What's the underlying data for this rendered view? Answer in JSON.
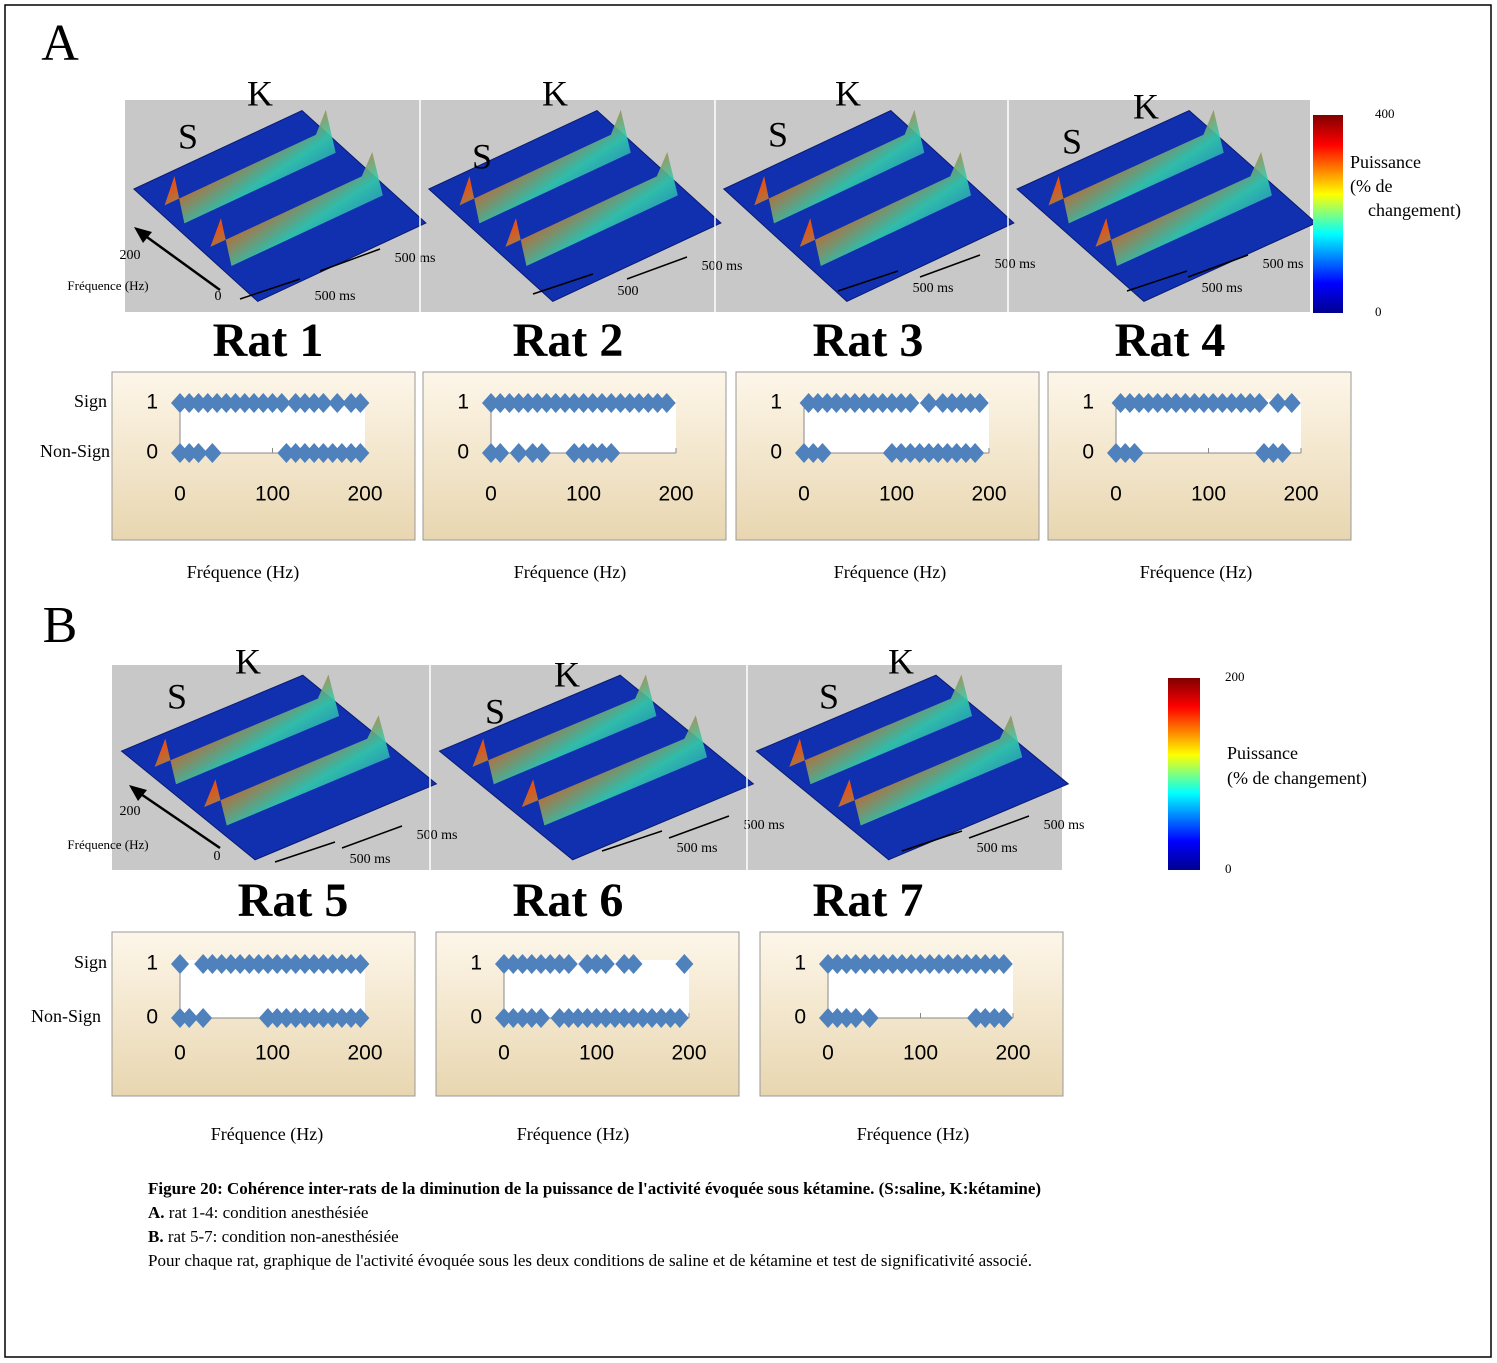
{
  "marker_color": "#4f81bd",
  "panels": [
    {
      "letter": "A",
      "row_labels": [
        "Sign",
        "Non-Sign"
      ],
      "surfaces": [
        {
          "saline": "S",
          "ketamine": "K",
          "time_labels": [
            "500 ms",
            "500 ms"
          ],
          "freq_ticks": [
            "200",
            "0"
          ],
          "freq_label": "Fréquence (Hz)"
        },
        {
          "saline": "S",
          "ketamine": "K",
          "time_labels": [
            "500 ms",
            "500"
          ]
        },
        {
          "saline": "S",
          "ketamine": "K",
          "time_labels": [
            "500 ms",
            "500 ms"
          ]
        },
        {
          "saline": "S",
          "ketamine": "K",
          "time_labels": [
            "500 ms",
            "500 ms"
          ]
        }
      ],
      "colorbar": {
        "ticks": [
          0,
          400
        ],
        "title": [
          "Puissance",
          "(% de",
          "changement)"
        ]
      },
      "charts": [
        {
          "title": "Rat 1",
          "xlabel": "Fréquence (Hz)",
          "xlim": [
            0,
            200
          ],
          "xticks": [
            0,
            100,
            200
          ],
          "ylim": [
            0,
            1
          ],
          "yticks": [
            0,
            1
          ],
          "sign": [
            0,
            10,
            20,
            30,
            40,
            50,
            60,
            70,
            80,
            90,
            100,
            110,
            125,
            135,
            145,
            155,
            170,
            185,
            195
          ],
          "nonsign": [
            0,
            10,
            20,
            35,
            115,
            125,
            135,
            145,
            155,
            165,
            175,
            185,
            195
          ]
        },
        {
          "title": "Rat 2",
          "xlabel": "Fréquence (Hz)",
          "xlim": [
            0,
            200
          ],
          "xticks": [
            0,
            100,
            200
          ],
          "ylim": [
            0,
            1
          ],
          "yticks": [
            0,
            1
          ],
          "sign": [
            0,
            10,
            20,
            30,
            40,
            50,
            60,
            70,
            80,
            90,
            100,
            110,
            120,
            130,
            140,
            150,
            160,
            170,
            180,
            190
          ],
          "nonsign": [
            0,
            10,
            30,
            45,
            55,
            90,
            100,
            110,
            120,
            130
          ]
        },
        {
          "title": "Rat 3",
          "xlabel": "Fréquence (Hz)",
          "xlim": [
            0,
            200
          ],
          "xticks": [
            0,
            100,
            200
          ],
          "ylim": [
            0,
            1
          ],
          "yticks": [
            0,
            1
          ],
          "sign": [
            5,
            15,
            25,
            35,
            45,
            55,
            65,
            75,
            85,
            95,
            105,
            115,
            135,
            150,
            160,
            170,
            180,
            190
          ],
          "nonsign": [
            0,
            10,
            20,
            95,
            105,
            115,
            125,
            135,
            145,
            155,
            165,
            175,
            185
          ]
        },
        {
          "title": "Rat 4",
          "xlabel": "Fréquence (Hz)",
          "xlim": [
            0,
            200
          ],
          "xticks": [
            0,
            100,
            200
          ],
          "ylim": [
            0,
            1
          ],
          "yticks": [
            0,
            1
          ],
          "sign": [
            5,
            15,
            25,
            35,
            45,
            55,
            65,
            75,
            85,
            95,
            105,
            115,
            125,
            135,
            145,
            155,
            175,
            190
          ],
          "nonsign": [
            0,
            10,
            20,
            160,
            170,
            180
          ]
        }
      ]
    },
    {
      "letter": "B",
      "row_labels": [
        "Sign",
        "Non-Sign"
      ],
      "surfaces": [
        {
          "saline": "S",
          "ketamine": "K",
          "time_labels": [
            "500 ms",
            "500 ms"
          ],
          "freq_ticks": [
            "200",
            "0"
          ],
          "freq_label": "Fréquence (Hz)"
        },
        {
          "saline": "S",
          "ketamine": "K",
          "time_labels": [
            "500 ms",
            "500 ms"
          ]
        },
        {
          "saline": "S",
          "ketamine": "K",
          "time_labels": [
            "500 ms",
            "500 ms"
          ]
        }
      ],
      "colorbar": {
        "ticks": [
          0,
          200
        ],
        "title": [
          "Puissance",
          "(% de changement)"
        ]
      },
      "charts": [
        {
          "title": "Rat 5",
          "xlabel": "Fréquence (Hz)",
          "xlim": [
            0,
            200
          ],
          "xticks": [
            0,
            100,
            200
          ],
          "ylim": [
            0,
            1
          ],
          "yticks": [
            0,
            1
          ],
          "sign": [
            0,
            25,
            35,
            45,
            55,
            65,
            75,
            85,
            95,
            105,
            115,
            125,
            135,
            145,
            155,
            165,
            175,
            185,
            195
          ],
          "nonsign": [
            0,
            10,
            25,
            95,
            105,
            115,
            125,
            135,
            145,
            155,
            165,
            175,
            185,
            195
          ]
        },
        {
          "title": "Rat 6",
          "xlabel": "Fréquence (Hz)",
          "xlim": [
            0,
            200
          ],
          "xticks": [
            0,
            100,
            200
          ],
          "ylim": [
            0,
            1
          ],
          "yticks": [
            0,
            1
          ],
          "sign": [
            0,
            10,
            20,
            30,
            40,
            50,
            60,
            70,
            90,
            100,
            110,
            130,
            140,
            195
          ],
          "nonsign": [
            0,
            10,
            20,
            30,
            40,
            60,
            70,
            80,
            90,
            100,
            110,
            120,
            130,
            140,
            150,
            160,
            170,
            180,
            190
          ]
        },
        {
          "title": "Rat 7",
          "xlabel": "Fréquence (Hz)",
          "xlim": [
            0,
            200
          ],
          "xticks": [
            0,
            100,
            200
          ],
          "ylim": [
            0,
            1
          ],
          "yticks": [
            0,
            1
          ],
          "sign": [
            0,
            10,
            20,
            30,
            40,
            50,
            60,
            70,
            80,
            90,
            100,
            110,
            120,
            130,
            140,
            150,
            160,
            170,
            180,
            190
          ],
          "nonsign": [
            0,
            10,
            20,
            30,
            45,
            160,
            170,
            180,
            190
          ]
        }
      ]
    }
  ],
  "caption": {
    "title": "Figure 20: Cohérence inter-rats de la diminution de la puissance de  l'activité évoquée sous kétamine. (S:saline, K:kétamine)",
    "lines": [
      {
        "label": "A.",
        "text": " rat 1-4: condition anesthésiée"
      },
      {
        "label": "B.",
        "text": " rat 5-7: condition non-anesthésiée"
      }
    ],
    "note": "Pour chaque rat, graphique de l'activité évoquée sous les deux conditions de saline et de kétamine et test de significativité associé."
  }
}
